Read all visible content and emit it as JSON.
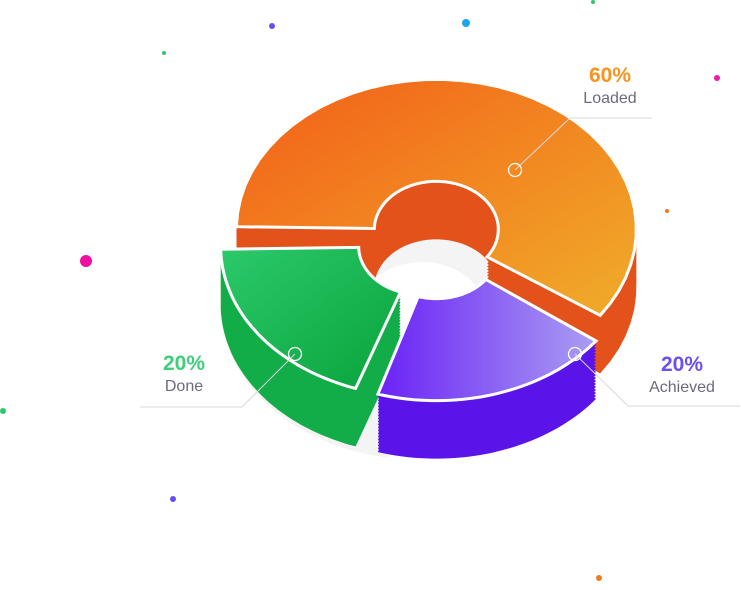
{
  "chart_data": {
    "type": "pie",
    "style": "3d exploded donut",
    "categories": [
      "Loaded",
      "Achieved",
      "Done"
    ],
    "values": [
      60,
      20,
      20
    ],
    "percent_labels": [
      "60%",
      "20%",
      "20%"
    ],
    "colors": {
      "Loaded": [
        "#f35e18",
        "#f0ad2a"
      ],
      "Achieved": [
        "#6a22f6",
        "#aa9ef2"
      ],
      "Done": [
        "#2cc96b",
        "#09a33b"
      ]
    },
    "label_colors": {
      "Loaded": "#f7931e",
      "Achieved": "#6c4ff0",
      "Done": "#3ecf7a"
    },
    "legend": "none"
  },
  "labels": {
    "loaded": {
      "pct": "60%",
      "name": "Loaded"
    },
    "achieved": {
      "pct": "20%",
      "name": "Achieved"
    },
    "done": {
      "pct": "20%",
      "name": "Done"
    }
  }
}
